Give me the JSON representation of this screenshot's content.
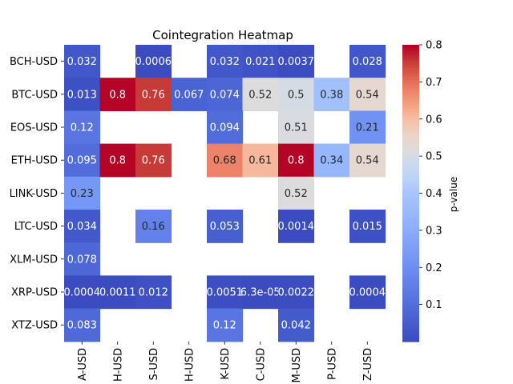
{
  "chart_data": {
    "type": "heatmap",
    "title": "Cointegration Heatmap",
    "colorbar_label": "p-value",
    "colormap": "coolwarm",
    "vmin": 0.0,
    "vmax": 0.8,
    "colorbar_ticks": [
      "0.1",
      "0.2",
      "0.3",
      "0.4",
      "0.5",
      "0.6",
      "0.7",
      "0.8"
    ],
    "rows": [
      "BCH-USD",
      "BTC-USD",
      "EOS-USD",
      "ETH-USD",
      "LINK-USD",
      "LTC-USD",
      "XLM-USD",
      "XRP-USD",
      "XTZ-USD"
    ],
    "columns": [
      "A-USD",
      "H-USD",
      "S-USD",
      "H-USD",
      "K-USD",
      "C-USD",
      "M-USD",
      "P-USD",
      "Z-USD"
    ],
    "cells": [
      [
        {
          "value": 0.032,
          "label": "0.032"
        },
        null,
        {
          "value": 0.0006,
          "label": "0.0006"
        },
        null,
        {
          "value": 0.032,
          "label": "0.032"
        },
        {
          "value": 0.021,
          "label": "0.021"
        },
        {
          "value": 0.0037,
          "label": "0.0037"
        },
        null,
        {
          "value": 0.028,
          "label": "0.028"
        }
      ],
      [
        {
          "value": 0.013,
          "label": "0.013"
        },
        {
          "value": 0.8,
          "label": "0.8"
        },
        {
          "value": 0.76,
          "label": "0.76"
        },
        {
          "value": 0.067,
          "label": "0.067"
        },
        {
          "value": 0.074,
          "label": "0.074"
        },
        {
          "value": 0.52,
          "label": "0.52"
        },
        {
          "value": 0.5,
          "label": "0.5"
        },
        {
          "value": 0.38,
          "label": "0.38"
        },
        {
          "value": 0.54,
          "label": "0.54"
        }
      ],
      [
        {
          "value": 0.12,
          "label": "0.12"
        },
        null,
        null,
        null,
        {
          "value": 0.094,
          "label": "0.094"
        },
        null,
        {
          "value": 0.51,
          "label": "0.51"
        },
        null,
        {
          "value": 0.21,
          "label": "0.21"
        }
      ],
      [
        {
          "value": 0.095,
          "label": "0.095"
        },
        {
          "value": 0.8,
          "label": "0.8"
        },
        {
          "value": 0.76,
          "label": "0.76"
        },
        null,
        {
          "value": 0.68,
          "label": "0.68"
        },
        {
          "value": 0.61,
          "label": "0.61"
        },
        {
          "value": 0.8,
          "label": "0.8"
        },
        {
          "value": 0.34,
          "label": "0.34"
        },
        {
          "value": 0.54,
          "label": "0.54"
        }
      ],
      [
        {
          "value": 0.23,
          "label": "0.23"
        },
        null,
        null,
        null,
        null,
        null,
        {
          "value": 0.52,
          "label": "0.52"
        },
        null,
        null
      ],
      [
        {
          "value": 0.034,
          "label": "0.034"
        },
        null,
        {
          "value": 0.16,
          "label": "0.16"
        },
        null,
        {
          "value": 0.053,
          "label": "0.053"
        },
        null,
        {
          "value": 0.0014,
          "label": "0.0014"
        },
        null,
        {
          "value": 0.015,
          "label": "0.015"
        }
      ],
      [
        {
          "value": 0.078,
          "label": "0.078"
        },
        null,
        null,
        null,
        null,
        null,
        null,
        null,
        null
      ],
      [
        {
          "value": 0.0004,
          "label": "0.0004"
        },
        {
          "value": 0.0011,
          "label": "0.0011"
        },
        {
          "value": 0.012,
          "label": "0.012"
        },
        null,
        {
          "value": 0.0051,
          "label": "0.0051"
        },
        {
          "value": 6.3e-05,
          "label": "6.3e-05"
        },
        {
          "value": 0.0022,
          "label": "0.0022"
        },
        null,
        {
          "value": 0.0004,
          "label": "0.0004"
        }
      ],
      [
        {
          "value": 0.083,
          "label": "0.083"
        },
        null,
        null,
        null,
        {
          "value": 0.12,
          "label": "0.12"
        },
        null,
        {
          "value": 0.042,
          "label": "0.042"
        },
        null,
        null
      ]
    ]
  }
}
